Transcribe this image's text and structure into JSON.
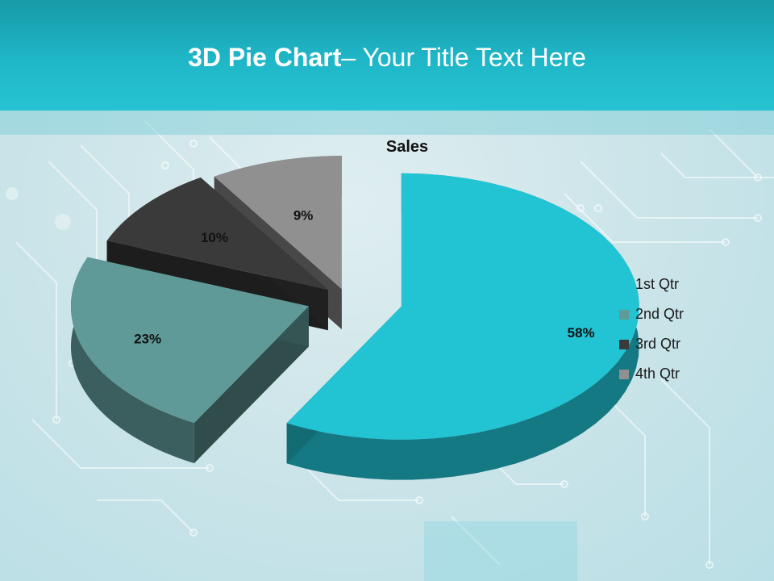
{
  "slide": {
    "title_bold": "3D Pie Chart",
    "title_rest": "– Your Title Text Here"
  },
  "colors": {
    "header": "#1fb7c8",
    "slice_1": "#22c3d3",
    "slice_2": "#5f9a98",
    "slice_3": "#3a3a3a",
    "slice_4": "#909090"
  },
  "chart_data": {
    "type": "pie",
    "style": "3d-exploded",
    "title": "Sales",
    "categories": [
      "1st Qtr",
      "2nd Qtr",
      "3rd Qtr",
      "4th Qtr"
    ],
    "values": [
      58,
      23,
      10,
      9
    ],
    "labels": [
      "58%",
      "23%",
      "10%",
      "9%"
    ],
    "legend_position": "right"
  }
}
